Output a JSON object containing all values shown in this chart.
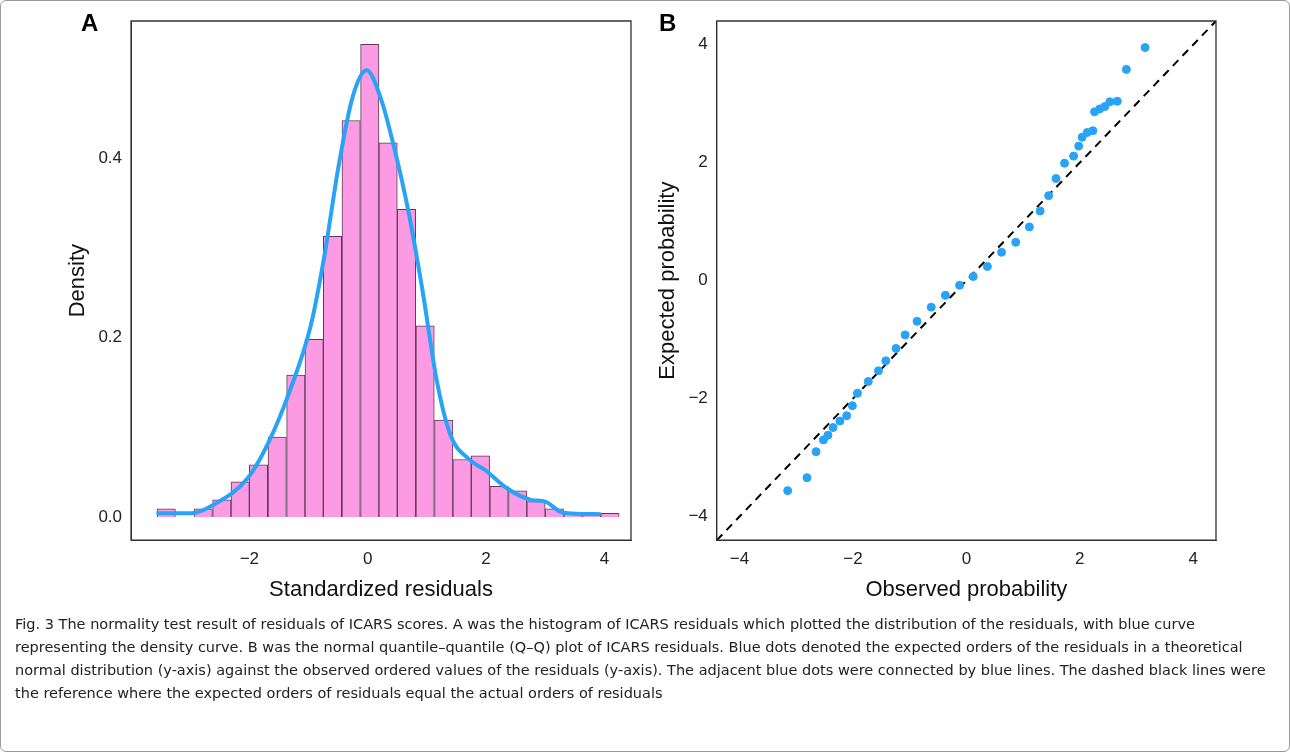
{
  "chart_data": [
    {
      "type": "histogram",
      "title": "A",
      "xlabel": "Standardized residuals",
      "ylabel": "Density",
      "bins": [
        -3.56,
        -3.25,
        -2.94,
        -2.62,
        -2.31,
        -2.0,
        -1.69,
        -1.37,
        -1.06,
        -0.75,
        -0.44,
        -0.12,
        0.19,
        0.5,
        0.81,
        1.13,
        1.44,
        1.75,
        2.06,
        2.38,
        2.69,
        3.0,
        3.31,
        3.63,
        3.94,
        4.25
      ],
      "values": [
        0.009,
        0,
        0.009,
        0.019,
        0.039,
        0.058,
        0.089,
        0.158,
        0.198,
        0.313,
        0.442,
        0.527,
        0.417,
        0.343,
        0.213,
        0.108,
        0.064,
        0.068,
        0.034,
        0.029,
        0.017,
        0.009,
        0.003,
        0.003,
        0.004
      ],
      "color": "#fc9be4",
      "series": [
        {
          "type": "line",
          "color": "#29a3f5",
          "x": [
            -3.57,
            -2.98,
            -2.62,
            -2.03,
            -1.67,
            -1.32,
            -0.96,
            -0.73,
            -0.49,
            -0.26,
            -0.02,
            0.22,
            0.45,
            0.69,
            0.93,
            1.17,
            1.4,
            1.7,
            1.99,
            2.35,
            2.76,
            3.0,
            3.29,
            3.94
          ],
          "values": [
            0.004,
            0.004,
            0.013,
            0.043,
            0.084,
            0.14,
            0.214,
            0.292,
            0.392,
            0.467,
            0.498,
            0.467,
            0.411,
            0.34,
            0.251,
            0.151,
            0.091,
            0.065,
            0.052,
            0.032,
            0.019,
            0.017,
            0.005,
            0.003
          ]
        }
      ],
      "xlim": [
        -4.0,
        4.45
      ],
      "ylim": [
        -0.026,
        0.553
      ],
      "xticks": [
        -2,
        0,
        2,
        4
      ],
      "yticks": [
        {
          "value": 0,
          "label": "0.0"
        },
        {
          "value": 0.2,
          "label": "0.2"
        },
        {
          "value": 0.4,
          "label": "0.4"
        }
      ]
    },
    {
      "type": "scatter",
      "title": "B",
      "xlabel": "Observed probability",
      "ylabel": "Expected probability",
      "series": [
        {
          "type": "scatter",
          "color": "#29a3f5",
          "marker": "circle",
          "x": [
            -3.15,
            -2.81,
            -2.65,
            -2.52,
            -2.44,
            -2.35,
            -2.23,
            -2.11,
            -2.01,
            -1.92,
            -1.73,
            -1.55,
            -1.42,
            -1.24,
            -1.08,
            -0.87,
            -0.62,
            -0.37,
            -0.12,
            0.12,
            0.37,
            0.62,
            0.87,
            1.11,
            1.3,
            1.45,
            1.58,
            1.73,
            1.89,
            1.98,
            2.04,
            2.13,
            2.23,
            2.26,
            2.35,
            2.44,
            2.53,
            2.66,
            2.82,
            3.15
          ],
          "values": [
            -3.56,
            -3.34,
            -2.9,
            -2.7,
            -2.62,
            -2.49,
            -2.38,
            -2.29,
            -2.12,
            -1.91,
            -1.71,
            -1.53,
            -1.36,
            -1.15,
            -0.92,
            -0.69,
            -0.45,
            -0.25,
            -0.08,
            0.07,
            0.24,
            0.48,
            0.65,
            0.91,
            1.18,
            1.44,
            1.73,
            1.99,
            2.11,
            2.28,
            2.43,
            2.51,
            2.54,
            2.86,
            2.91,
            2.95,
            3.03,
            3.04,
            3.58,
            3.95
          ]
        },
        {
          "type": "line",
          "color": "#000000",
          "line_style": "dashed",
          "x": [
            -4.4,
            4.4
          ],
          "values": [
            -4.4,
            4.4
          ]
        }
      ],
      "xlim": [
        -4.4,
        4.4
      ],
      "ylim": [
        -4.4,
        4.4
      ],
      "xticks": [
        -4,
        -2,
        0,
        2,
        4
      ],
      "yticks": [
        -4,
        -2,
        0,
        2,
        4
      ],
      "annotations": [
        "Fig. 3  The normality test result of residuals of ICARS scores. A was the histogram of ICARS residuals which plotted the distribution of the residuals, with blue curve representing the density curve. B was the normal quantile–quantile (Q–Q) plot of ICARS residuals. Blue dots denoted the expected orders of the residuals in a theoretical normal distribution (y-axis) against the observed ordered values of the residuals (y-axis). The adjacent blue dots were connected by blue lines. The dashed black lines were the reference where the expected orders of residuals equal the actual orders of residuals"
      ]
    }
  ]
}
